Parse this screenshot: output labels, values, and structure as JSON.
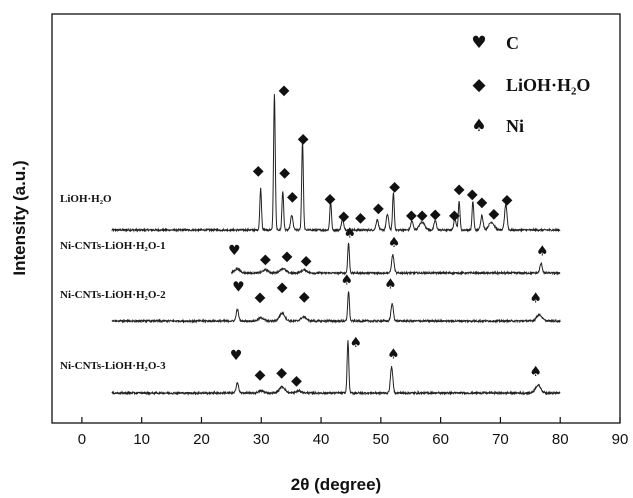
{
  "chart_data": {
    "type": "line",
    "xlabel": "2θ (degree)",
    "ylabel": "Intensity (a.u.)",
    "xlim": [
      -5,
      90
    ],
    "xticks": [
      0,
      10,
      20,
      30,
      40,
      50,
      60,
      70,
      80,
      90
    ],
    "y_ticks_shown": false,
    "grid": false,
    "legend_position": "top-right",
    "legend": [
      {
        "symbol": "♥",
        "label": "C"
      },
      {
        "symbol": "◆",
        "label": "LiOH·H₂O"
      },
      {
        "symbol": "♠",
        "label": "Ni"
      }
    ],
    "series": [
      {
        "name": "LiOH·H₂O",
        "x_range": [
          5,
          80
        ],
        "peaks": [
          {
            "x": 29.9,
            "h": 0.8
          },
          {
            "x": 32.2,
            "h": 2.6
          },
          {
            "x": 33.6,
            "h": 0.75
          },
          {
            "x": 35.1,
            "h": 0.28
          },
          {
            "x": 36.9,
            "h": 1.7
          },
          {
            "x": 41.6,
            "h": 0.55
          },
          {
            "x": 43.6,
            "h": 0.2
          },
          {
            "x": 49.4,
            "h": 0.2
          },
          {
            "x": 51.1,
            "h": 0.3
          },
          {
            "x": 52.1,
            "h": 0.72
          },
          {
            "x": 55.2,
            "h": 0.17
          },
          {
            "x": 56.9,
            "h": 0.15
          },
          {
            "x": 59.1,
            "h": 0.18
          },
          {
            "x": 62.4,
            "h": 0.22
          },
          {
            "x": 63.1,
            "h": 0.55
          },
          {
            "x": 65.4,
            "h": 0.55
          },
          {
            "x": 66.9,
            "h": 0.28
          },
          {
            "x": 68.5,
            "h": 0.15
          },
          {
            "x": 70.9,
            "h": 0.5
          }
        ],
        "markers": [
          {
            "x": 29.5,
            "y": 1.15,
            "type": "diamond"
          },
          {
            "x": 33.8,
            "y": 2.7,
            "type": "diamond"
          },
          {
            "x": 33.9,
            "y": 1.12,
            "type": "diamond"
          },
          {
            "x": 35.2,
            "y": 0.65,
            "type": "diamond"
          },
          {
            "x": 37.0,
            "y": 1.77,
            "type": "diamond"
          },
          {
            "x": 41.5,
            "y": 0.62,
            "type": "diamond"
          },
          {
            "x": 43.8,
            "y": 0.28,
            "type": "diamond"
          },
          {
            "x": 46.6,
            "y": 0.25,
            "type": "diamond"
          },
          {
            "x": 49.6,
            "y": 0.43,
            "type": "diamond"
          },
          {
            "x": 52.3,
            "y": 0.85,
            "type": "diamond"
          },
          {
            "x": 55.1,
            "y": 0.3,
            "type": "diamond"
          },
          {
            "x": 56.9,
            "y": 0.3,
            "type": "diamond"
          },
          {
            "x": 59.1,
            "y": 0.32,
            "type": "diamond"
          },
          {
            "x": 62.3,
            "y": 0.3,
            "type": "diamond"
          },
          {
            "x": 63.1,
            "y": 0.8,
            "type": "diamond"
          },
          {
            "x": 65.3,
            "y": 0.7,
            "type": "diamond"
          },
          {
            "x": 66.9,
            "y": 0.55,
            "type": "diamond"
          },
          {
            "x": 68.9,
            "y": 0.33,
            "type": "diamond"
          },
          {
            "x": 71.1,
            "y": 0.6,
            "type": "diamond"
          }
        ]
      },
      {
        "name": "Ni-CNTs-LiOH·H₂O-1",
        "x_range": [
          25,
          80
        ],
        "peaks": [
          {
            "x": 26.0,
            "h": 0.08
          },
          {
            "x": 30.7,
            "h": 0.06
          },
          {
            "x": 33.6,
            "h": 0.09
          },
          {
            "x": 37.2,
            "h": 0.06
          },
          {
            "x": 44.6,
            "h": 0.58
          },
          {
            "x": 52.0,
            "h": 0.35
          },
          {
            "x": 76.8,
            "h": 0.18
          }
        ],
        "markers": [
          {
            "x": 25.5,
            "y": 0.44,
            "type": "heart"
          },
          {
            "x": 30.7,
            "y": 0.28,
            "type": "diamond"
          },
          {
            "x": 34.3,
            "y": 0.34,
            "type": "diamond"
          },
          {
            "x": 37.5,
            "y": 0.25,
            "type": "diamond"
          },
          {
            "x": 44.8,
            "y": 0.78,
            "type": "spade"
          },
          {
            "x": 52.2,
            "y": 0.6,
            "type": "spade"
          },
          {
            "x": 77.0,
            "y": 0.43,
            "type": "spade"
          }
        ]
      },
      {
        "name": "Ni-CNTs-LiOH·H₂O-2",
        "x_range": [
          5,
          80
        ],
        "peaks": [
          {
            "x": 26.0,
            "h": 0.22
          },
          {
            "x": 30.0,
            "h": 0.06
          },
          {
            "x": 33.5,
            "h": 0.15
          },
          {
            "x": 37.1,
            "h": 0.08
          },
          {
            "x": 44.6,
            "h": 0.58
          },
          {
            "x": 51.9,
            "h": 0.33
          },
          {
            "x": 76.5,
            "h": 0.12
          }
        ],
        "markers": [
          {
            "x": 26.2,
            "y": 0.66,
            "type": "heart"
          },
          {
            "x": 29.8,
            "y": 0.47,
            "type": "diamond"
          },
          {
            "x": 33.5,
            "y": 0.66,
            "type": "diamond"
          },
          {
            "x": 37.2,
            "y": 0.48,
            "type": "diamond"
          },
          {
            "x": 44.3,
            "y": 0.8,
            "type": "spade"
          },
          {
            "x": 51.6,
            "y": 0.72,
            "type": "spade"
          },
          {
            "x": 75.9,
            "y": 0.45,
            "type": "spade"
          }
        ]
      },
      {
        "name": "Ni-CNTs-LiOH·H₂O-3",
        "x_range": [
          5,
          80
        ],
        "peaks": [
          {
            "x": 26.0,
            "h": 0.2
          },
          {
            "x": 30.0,
            "h": 0.04
          },
          {
            "x": 33.5,
            "h": 0.12
          },
          {
            "x": 36.3,
            "h": 0.04
          },
          {
            "x": 44.5,
            "h": 1.0
          },
          {
            "x": 51.8,
            "h": 0.5
          },
          {
            "x": 76.3,
            "h": 0.15
          }
        ],
        "markers": [
          {
            "x": 25.8,
            "y": 0.73,
            "type": "heart"
          },
          {
            "x": 29.8,
            "y": 0.37,
            "type": "diamond"
          },
          {
            "x": 33.4,
            "y": 0.4,
            "type": "diamond"
          },
          {
            "x": 35.9,
            "y": 0.25,
            "type": "diamond"
          },
          {
            "x": 45.8,
            "y": 0.98,
            "type": "spade"
          },
          {
            "x": 52.1,
            "y": 0.76,
            "type": "spade"
          },
          {
            "x": 75.9,
            "y": 0.42,
            "type": "spade"
          }
        ]
      }
    ]
  }
}
